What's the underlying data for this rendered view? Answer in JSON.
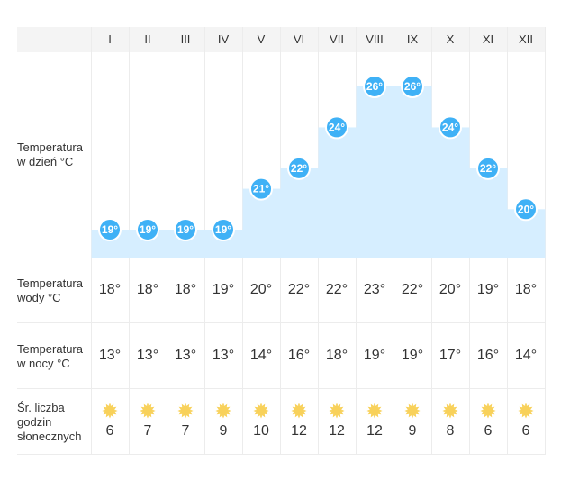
{
  "months": [
    "I",
    "II",
    "III",
    "IV",
    "V",
    "VI",
    "VII",
    "VIII",
    "IX",
    "X",
    "XI",
    "XII"
  ],
  "rows": {
    "day_temp_label": [
      "Temperatura",
      "w dzień °C"
    ],
    "water_temp_label": [
      "Temperatura",
      "wody °C"
    ],
    "night_temp_label": [
      "Temperatura",
      "w nocy °C"
    ],
    "sun_hours_label": [
      "Śr. liczba",
      "godzin",
      "słonecznych"
    ]
  },
  "chart_data": {
    "type": "area",
    "categories": [
      "I",
      "II",
      "III",
      "IV",
      "V",
      "VI",
      "VII",
      "VIII",
      "IX",
      "X",
      "XI",
      "XII"
    ],
    "series": [
      {
        "values": [
          19,
          19,
          19,
          19,
          21,
          22,
          24,
          26,
          26,
          24,
          22,
          20
        ]
      }
    ],
    "ylim": [
      18,
      26
    ],
    "unit_suffix": "°"
  },
  "water_temp": [
    "18°",
    "18°",
    "18°",
    "19°",
    "20°",
    "22°",
    "22°",
    "23°",
    "22°",
    "20°",
    "19°",
    "18°"
  ],
  "night_temp": [
    "13°",
    "13°",
    "13°",
    "13°",
    "14°",
    "16°",
    "18°",
    "19°",
    "19°",
    "17°",
    "16°",
    "14°"
  ],
  "sun_hours": [
    "6",
    "7",
    "7",
    "9",
    "10",
    "12",
    "12",
    "12",
    "9",
    "8",
    "6",
    "6"
  ],
  "colors": {
    "area_fill": "#d6eeff",
    "bubble": "#3fb1f6",
    "bubble_border": "#ffffff",
    "header_bg": "#f4f4f4",
    "sun": "#f8d15a"
  },
  "icons": {
    "sun": "sun-icon"
  }
}
